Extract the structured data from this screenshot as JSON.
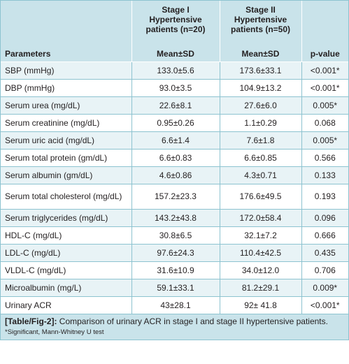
{
  "table": {
    "header": {
      "stage1": "Stage I Hypertensive patients (n=20)",
      "stage2": "Stage II Hypertensive patients (n=50)",
      "parameters": "Parameters",
      "mean_sd_1": "Mean±SD",
      "mean_sd_2": "Mean±SD",
      "pvalue": "p-value"
    },
    "rows": [
      {
        "param": "SBP (mmHg)",
        "s1": "133.0±5.6",
        "s2": "173.6±33.1",
        "p": "<0.001*"
      },
      {
        "param": "DBP (mmHg)",
        "s1": "93.0±3.5",
        "s2": "104.9±13.2",
        "p": "<0.001*"
      },
      {
        "param": "Serum urea (mg/dL)",
        "s1": "22.6±8.1",
        "s2": "27.6±6.0",
        "p": "0.005*"
      },
      {
        "param": "Serum creatinine (mg/dL)",
        "s1": "0.95±0.26",
        "s2": "1.1±0.29",
        "p": "0.068"
      },
      {
        "param": "Serum uric acid (mg/dL)",
        "s1": "6.6±1.4",
        "s2": "7.6±1.8",
        "p": "0.005*"
      },
      {
        "param": "Serum total protein (gm/dL)",
        "s1": "6.6±0.83",
        "s2": "6.6±0.85",
        "p": "0.566"
      },
      {
        "param": "Serum albumin (gm/dL)",
        "s1": "4.6±0.86",
        "s2": "4.3±0.71",
        "p": "0.133"
      },
      {
        "param": "Serum total cholesterol (mg/dL)",
        "s1": "157.2±23.3",
        "s2": "176.6±49.5",
        "p": "0.193"
      },
      {
        "param": "Serum triglycerides (mg/dL)",
        "s1": "143.2±43.8",
        "s2": "172.0±58.4",
        "p": "0.096"
      },
      {
        "param": "HDL-C (mg/dL)",
        "s1": "30.8±6.5",
        "s2": "32.1±7.2",
        "p": "0.666"
      },
      {
        "param": "LDL-C (mg/dL)",
        "s1": "97.6±24.3",
        "s2": "110.4±42.5",
        "p": "0.435"
      },
      {
        "param": "VLDL-C (mg/dL)",
        "s1": "31.6±10.9",
        "s2": "34.0±12.0",
        "p": "0.706"
      },
      {
        "param": "Microalbumin (mg/L)",
        "s1": "59.1±33.1",
        "s2": "81.2±29.1",
        "p": "0.009*"
      },
      {
        "param": "Urinary ACR",
        "s1": "43±28.1",
        "s2": "92± 41.8",
        "p": "<0.001*"
      }
    ]
  },
  "caption": {
    "label": "[Table/Fig-2]:",
    "text": " Comparison of urinary ACR in stage I and stage II hypertensive patients.",
    "footnote": "*Significant, Mann-Whitney U test"
  }
}
